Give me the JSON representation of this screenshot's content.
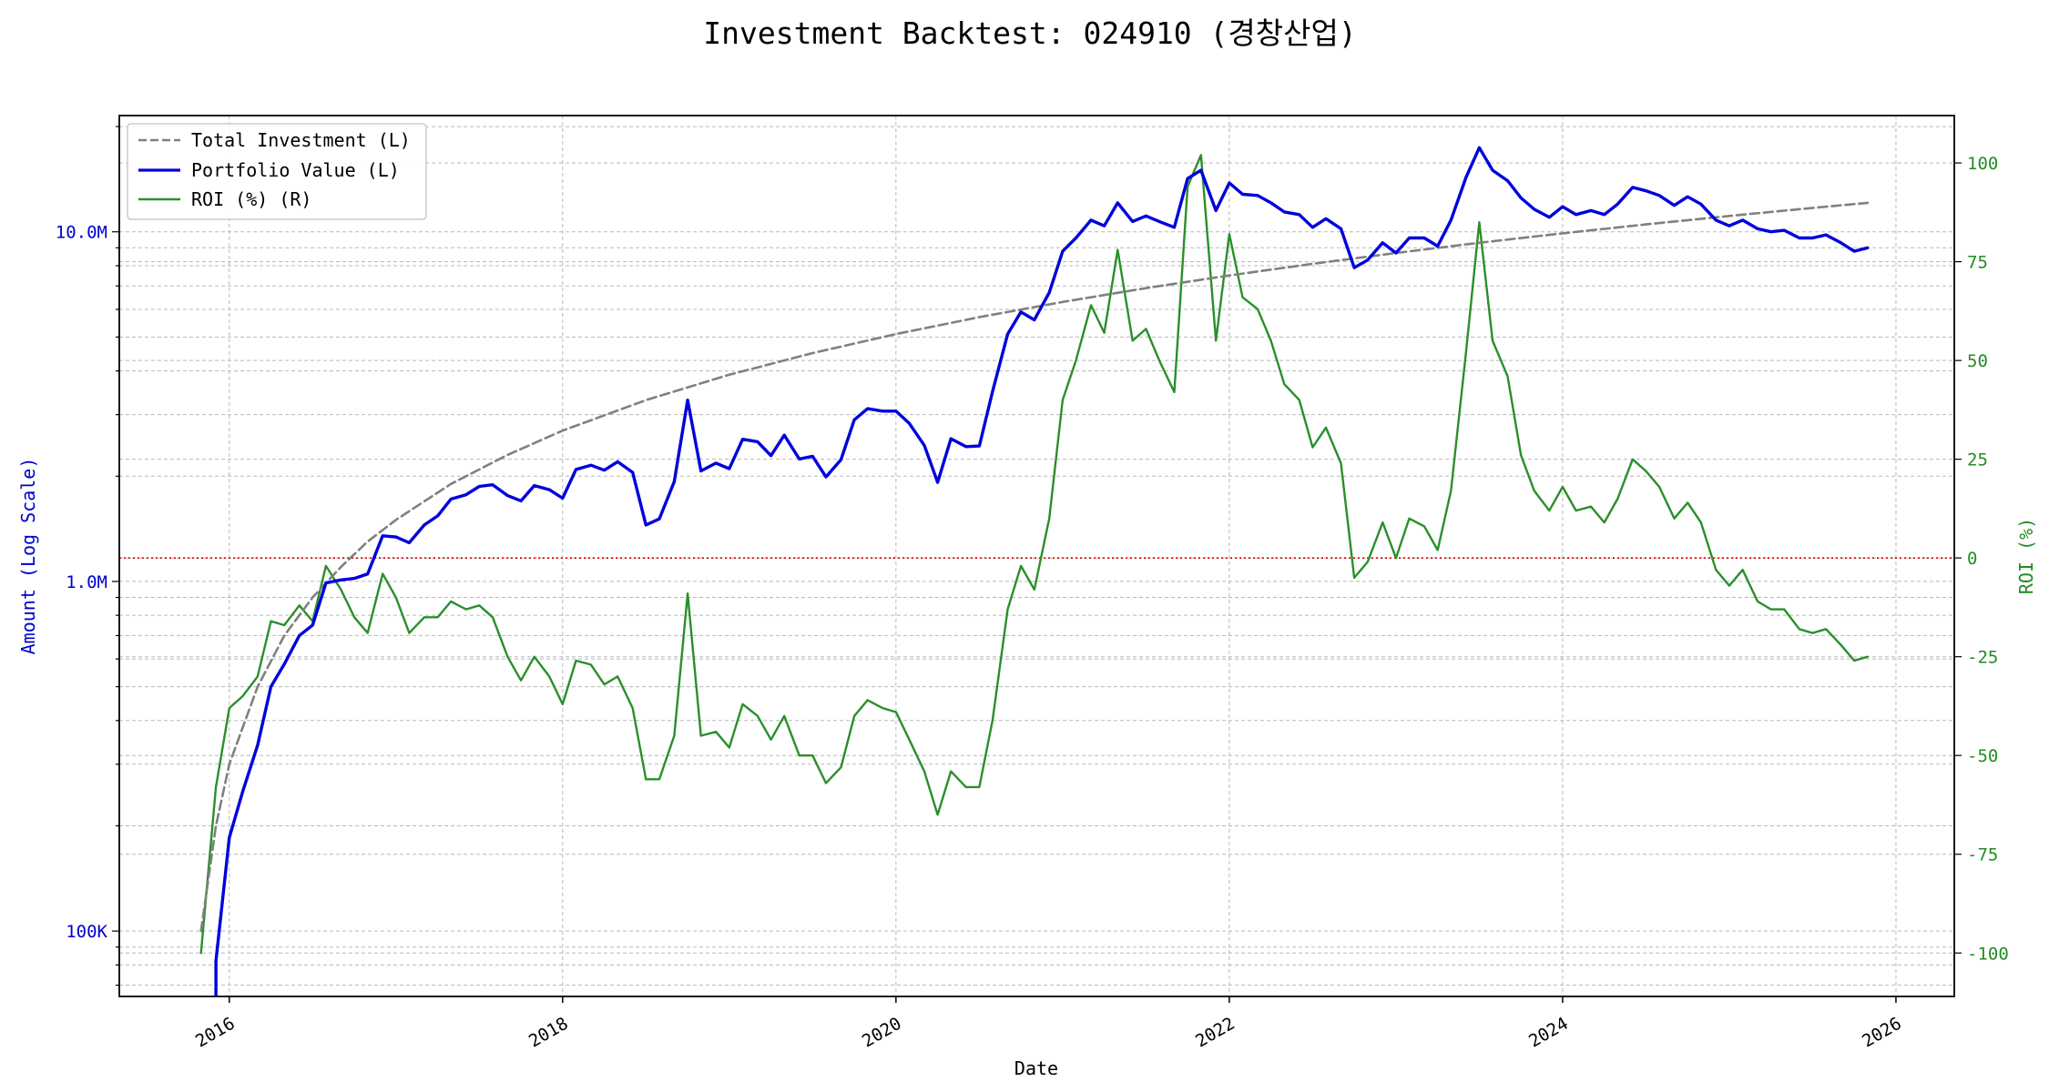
{
  "chart_data": {
    "type": "line",
    "title": "Investment Backtest: 024910 (경창산업)",
    "xlabel": "Date",
    "ylabel_left": "Amount (Log Scale)",
    "ylabel_right": "ROI (%)",
    "left_scale": "log",
    "left_ylim": [
      65000,
      21500000
    ],
    "right_ylim": [
      -111,
      112
    ],
    "xlim": [
      2015.34,
      2026.35
    ],
    "x_ticks": [
      {
        "value": 2016,
        "label": "2016"
      },
      {
        "value": 2018,
        "label": "2018"
      },
      {
        "value": 2020,
        "label": "2020"
      },
      {
        "value": 2022,
        "label": "2022"
      },
      {
        "value": 2024,
        "label": "2024"
      },
      {
        "value": 2026,
        "label": "2026"
      }
    ],
    "left_ticks": [
      {
        "value": 100000,
        "label": "100K"
      },
      {
        "value": 1000000,
        "label": "1.0M"
      },
      {
        "value": 10000000,
        "label": "10.0M"
      }
    ],
    "right_ticks": [
      -100,
      -75,
      -50,
      -25,
      0,
      25,
      50,
      75,
      100
    ],
    "grid": true,
    "legend_position": "top-left",
    "zero_line_color": "#dd0000",
    "legend": [
      {
        "label": "Total Investment (L)",
        "color": "#808080",
        "style": "dashed"
      },
      {
        "label": "Portfolio Value (L)",
        "color": "#0000dd",
        "style": "solid"
      },
      {
        "label": "ROI (%) (R)",
        "color": "#2a8f2a",
        "style": "solid"
      }
    ],
    "series": [
      {
        "name": "Total Investment (L)",
        "axis": "left",
        "color": "#808080",
        "style": "dashed",
        "x": [
          2015.83,
          2015.92,
          2016.0,
          2016.17,
          2016.33,
          2016.5,
          2016.67,
          2016.83,
          2017.0,
          2017.33,
          2017.67,
          2018.0,
          2018.5,
          2019.0,
          2019.5,
          2020.0,
          2020.5,
          2021.0,
          2021.5,
          2022.0,
          2022.5,
          2023.0,
          2023.5,
          2024.0,
          2024.5,
          2025.0,
          2025.5,
          2025.83
        ],
        "y": [
          100000,
          200000,
          300000,
          500000,
          700000,
          900000,
          1100000,
          1300000,
          1500000,
          1900000,
          2300000,
          2700000,
          3300000,
          3900000,
          4500000,
          5100000,
          5700000,
          6300000,
          6900000,
          7500000,
          8100000,
          8700000,
          9300000,
          9900000,
          10500000,
          11100000,
          11700000,
          12100000
        ]
      },
      {
        "name": "Portfolio Value (L)",
        "axis": "left",
        "color": "#0000dd",
        "style": "solid",
        "x": [
          2015.92,
          2015.92,
          2016.0,
          2016.08,
          2016.17,
          2016.25,
          2016.33,
          2016.42,
          2016.5,
          2016.58,
          2016.67,
          2016.75,
          2016.83,
          2016.92,
          2017.0,
          2017.08,
          2017.17,
          2017.25,
          2017.33,
          2017.42,
          2017.5,
          2017.58,
          2017.67,
          2017.75,
          2017.83,
          2017.92,
          2018.0,
          2018.08,
          2018.17,
          2018.25,
          2018.33,
          2018.42,
          2018.5,
          2018.58,
          2018.67,
          2018.75,
          2018.83,
          2018.92,
          2019.0,
          2019.08,
          2019.17,
          2019.25,
          2019.33,
          2019.42,
          2019.5,
          2019.58,
          2019.67,
          2019.75,
          2019.83,
          2019.92,
          2020.0,
          2020.08,
          2020.17,
          2020.25,
          2020.33,
          2020.42,
          2020.5,
          2020.58,
          2020.67,
          2020.75,
          2020.83,
          2020.92,
          2021.0,
          2021.08,
          2021.17,
          2021.25,
          2021.33,
          2021.42,
          2021.5,
          2021.58,
          2021.67,
          2021.75,
          2021.83,
          2021.92,
          2022.0,
          2022.08,
          2022.17,
          2022.25,
          2022.33,
          2022.42,
          2022.5,
          2022.58,
          2022.67,
          2022.75,
          2022.83,
          2022.92,
          2023.0,
          2023.08,
          2023.17,
          2023.25,
          2023.33,
          2023.42,
          2023.5,
          2023.58,
          2023.67,
          2023.75,
          2023.83,
          2023.92,
          2024.0,
          2024.08,
          2024.17,
          2024.25,
          2024.33,
          2024.42,
          2024.5,
          2024.58,
          2024.67,
          2024.75,
          2024.83,
          2024.92,
          2025.0,
          2025.08,
          2025.17,
          2025.25,
          2025.33,
          2025.42,
          2025.5,
          2025.58,
          2025.67,
          2025.75,
          2025.83
        ],
        "y": [
          50000,
          82000,
          185000,
          250000,
          340000,
          500000,
          580000,
          700000,
          750000,
          990000,
          1010000,
          1020000,
          1050000,
          1350000,
          1340000,
          1290000,
          1450000,
          1540000,
          1720000,
          1770000,
          1870000,
          1890000,
          1760000,
          1700000,
          1880000,
          1830000,
          1730000,
          2090000,
          2150000,
          2080000,
          2200000,
          2050000,
          1450000,
          1510000,
          1930000,
          3300000,
          2070000,
          2180000,
          2100000,
          2550000,
          2510000,
          2290000,
          2620000,
          2240000,
          2280000,
          1990000,
          2230000,
          2900000,
          3120000,
          3070000,
          3070000,
          2830000,
          2450000,
          1920000,
          2560000,
          2430000,
          2440000,
          3500000,
          5100000,
          5900000,
          5600000,
          6700000,
          8800000,
          9600000,
          10800000,
          10400000,
          12100000,
          10700000,
          11100000,
          10700000,
          10300000,
          14200000,
          15000000,
          11500000,
          13800000,
          12800000,
          12700000,
          12100000,
          11400000,
          11200000,
          10300000,
          10900000,
          10200000,
          7900000,
          8300000,
          9300000,
          8700000,
          9600000,
          9600000,
          9100000,
          10800000,
          14300000,
          17400000,
          15000000,
          14000000,
          12500000,
          11600000,
          11000000,
          11800000,
          11200000,
          11500000,
          11200000,
          12000000,
          13400000,
          13100000,
          12700000,
          11900000,
          12600000,
          12000000,
          10800000,
          10400000,
          10800000,
          10200000,
          10000000,
          10100000,
          9600000,
          9600000,
          9800000,
          9300000,
          8800000,
          9000000
        ]
      },
      {
        "name": "ROI (%) (R)",
        "axis": "right",
        "color": "#2a8f2a",
        "style": "solid",
        "x": [
          2015.83,
          2015.92,
          2016.0,
          2016.08,
          2016.17,
          2016.25,
          2016.33,
          2016.42,
          2016.5,
          2016.58,
          2016.67,
          2016.75,
          2016.83,
          2016.92,
          2017.0,
          2017.08,
          2017.17,
          2017.25,
          2017.33,
          2017.42,
          2017.5,
          2017.58,
          2017.67,
          2017.75,
          2017.83,
          2017.92,
          2018.0,
          2018.08,
          2018.17,
          2018.25,
          2018.33,
          2018.42,
          2018.5,
          2018.58,
          2018.67,
          2018.75,
          2018.83,
          2018.92,
          2019.0,
          2019.08,
          2019.17,
          2019.25,
          2019.33,
          2019.42,
          2019.5,
          2019.58,
          2019.67,
          2019.75,
          2019.83,
          2019.92,
          2020.0,
          2020.08,
          2020.17,
          2020.25,
          2020.33,
          2020.42,
          2020.5,
          2020.58,
          2020.67,
          2020.75,
          2020.83,
          2020.92,
          2021.0,
          2021.08,
          2021.17,
          2021.25,
          2021.33,
          2021.42,
          2021.5,
          2021.58,
          2021.67,
          2021.75,
          2021.83,
          2021.92,
          2022.0,
          2022.08,
          2022.17,
          2022.25,
          2022.33,
          2022.42,
          2022.5,
          2022.58,
          2022.67,
          2022.75,
          2022.83,
          2022.92,
          2023.0,
          2023.08,
          2023.17,
          2023.25,
          2023.33,
          2023.42,
          2023.5,
          2023.58,
          2023.67,
          2023.75,
          2023.83,
          2023.92,
          2024.0,
          2024.08,
          2024.17,
          2024.25,
          2024.33,
          2024.42,
          2024.5,
          2024.58,
          2024.67,
          2024.75,
          2024.83,
          2024.92,
          2025.0,
          2025.08,
          2025.17,
          2025.25,
          2025.33,
          2025.42,
          2025.5,
          2025.58,
          2025.67,
          2025.75,
          2025.83
        ],
        "y": [
          -100,
          -58,
          -38,
          -35,
          -30,
          -16,
          -17,
          -12,
          -16,
          -2,
          -8,
          -15,
          -19,
          -4,
          -10,
          -19,
          -15,
          -15,
          -11,
          -13,
          -12,
          -15,
          -25,
          -31,
          -25,
          -30,
          -37,
          -26,
          -27,
          -32,
          -30,
          -38,
          -56,
          -56,
          -45,
          -9,
          -45,
          -44,
          -48,
          -37,
          -40,
          -46,
          -40,
          -50,
          -50,
          -57,
          -53,
          -40,
          -36,
          -38,
          -39,
          -46,
          -54,
          -65,
          -54,
          -58,
          -58,
          -41,
          -13,
          -2,
          -8,
          10,
          40,
          50,
          64,
          57,
          78,
          55,
          58,
          50,
          42,
          94,
          102,
          55,
          82,
          66,
          63,
          55,
          44,
          40,
          28,
          33,
          24,
          -5,
          -1,
          9,
          0,
          10,
          8,
          2,
          17,
          52,
          85,
          55,
          46,
          26,
          17,
          12,
          18,
          12,
          13,
          9,
          15,
          25,
          22,
          18,
          10,
          14,
          9,
          -3,
          -7,
          -3,
          -11,
          -13,
          -13,
          -18,
          -19,
          -18,
          -22,
          -26,
          -25
        ]
      }
    ]
  }
}
